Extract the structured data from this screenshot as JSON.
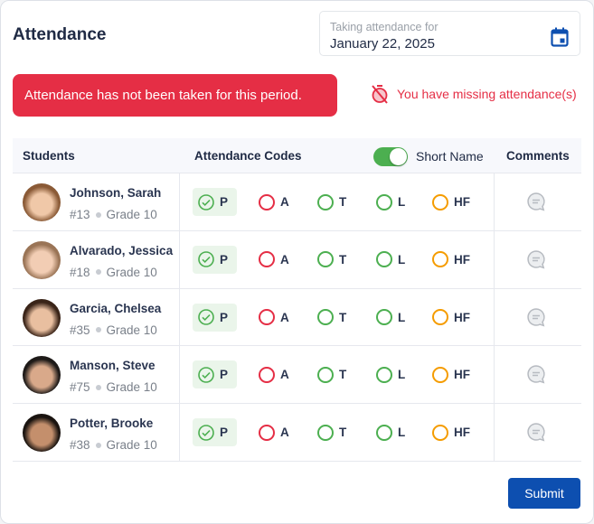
{
  "header": {
    "title": "Attendance",
    "date_label": "Taking attendance for",
    "date_value": "January 22, 2025"
  },
  "alert": {
    "message": "Attendance has not been taken for this period.",
    "missing": "You have missing attendance(s)",
    "color": "#e52e45"
  },
  "table": {
    "columns": {
      "students": "Students",
      "codes": "Attendance Codes",
      "short_name": "Short Name",
      "comments": "Comments"
    },
    "short_name_on": true,
    "codes": [
      {
        "label": "P",
        "color": "#4caf50"
      },
      {
        "label": "A",
        "color": "#e52e45"
      },
      {
        "label": "T",
        "color": "#4caf50"
      },
      {
        "label": "L",
        "color": "#4caf50"
      },
      {
        "label": "HF",
        "color": "#f59c00"
      }
    ],
    "rows": [
      {
        "name": "Johnson, Sarah",
        "id": "#13",
        "grade": "Grade 10",
        "selected": "P"
      },
      {
        "name": "Alvarado, Jessica",
        "id": "#18",
        "grade": "Grade 10",
        "selected": "P"
      },
      {
        "name": "Garcia, Chelsea",
        "id": "#35",
        "grade": "Grade 10",
        "selected": "P"
      },
      {
        "name": "Manson, Steve",
        "id": "#75",
        "grade": "Grade 10",
        "selected": "P"
      },
      {
        "name": "Potter, Brooke",
        "id": "#38",
        "grade": "Grade 10",
        "selected": "P"
      }
    ]
  },
  "footer": {
    "submit": "Submit",
    "accent": "#0d4fb0"
  }
}
